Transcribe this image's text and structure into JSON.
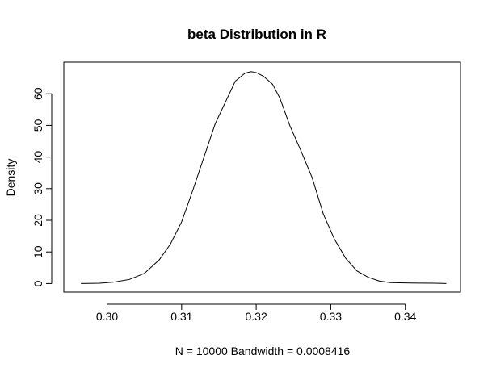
{
  "chart_data": {
    "type": "line",
    "title": "beta Distribution in R",
    "xlabel": "N = 10000   Bandwidth = 0.0008416",
    "ylabel": "Density",
    "xlim": [
      0.2942,
      0.3474
    ],
    "ylim": [
      -2.7,
      70.0
    ],
    "x_ticks": [
      0.3,
      0.31,
      0.32,
      0.33,
      0.34
    ],
    "x_tick_labels": [
      "0.30",
      "0.31",
      "0.32",
      "0.33",
      "0.34"
    ],
    "y_ticks": [
      0,
      10,
      20,
      30,
      40,
      50,
      60
    ],
    "y_tick_labels": [
      "0",
      "10",
      "20",
      "30",
      "40",
      "50",
      "60"
    ],
    "grid": false,
    "series": [
      {
        "x": [
          0.2965,
          0.299,
          0.301,
          0.303,
          0.305,
          0.307,
          0.3085,
          0.31,
          0.3115,
          0.313,
          0.3145,
          0.316,
          0.3172,
          0.3185,
          0.3193,
          0.32,
          0.321,
          0.3222,
          0.3232,
          0.3245,
          0.326,
          0.3275,
          0.329,
          0.3305,
          0.332,
          0.3335,
          0.335,
          0.3365,
          0.338,
          0.34,
          0.342,
          0.344,
          0.3455
        ],
        "y": [
          0,
          0.1,
          0.5,
          1.3,
          3.2,
          7.5,
          12.5,
          19.5,
          29.5,
          40.0,
          50.5,
          58.0,
          64.0,
          66.5,
          67.0,
          66.7,
          65.5,
          63.0,
          58.5,
          50.0,
          42.0,
          33.5,
          22.0,
          14.0,
          8.0,
          4.0,
          2.0,
          0.8,
          0.3,
          0.2,
          0.15,
          0.1,
          0
        ]
      }
    ]
  }
}
